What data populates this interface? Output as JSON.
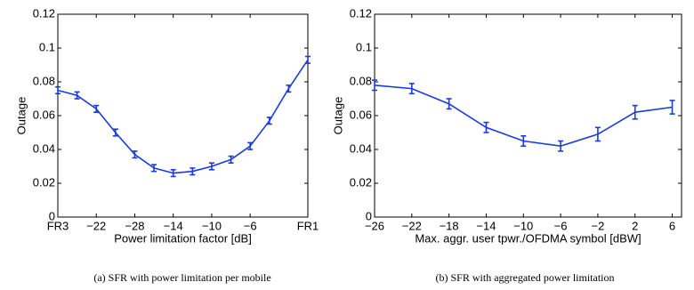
{
  "chart_data": [
    {
      "type": "line",
      "x_label": "Power limitation factor [dB]",
      "y_label": "Outage",
      "caption": "(a)  SFR with power limitation per mobile",
      "categories": [
        "FR3",
        null,
        "−22",
        null,
        "−28",
        null,
        "−14",
        null,
        "−10",
        null,
        "−6",
        null,
        null,
        "FR1"
      ],
      "values": [
        0.075,
        0.072,
        0.064,
        0.05,
        0.037,
        0.029,
        0.026,
        0.027,
        0.03,
        0.034,
        0.042,
        0.057,
        0.076,
        0.093
      ],
      "errors": [
        0.002,
        0.002,
        0.002,
        0.002,
        0.002,
        0.002,
        0.002,
        0.002,
        0.002,
        0.002,
        0.002,
        0.002,
        0.002,
        0.002
      ],
      "color": "#1a3be0",
      "ylim": [
        0,
        0.12
      ],
      "yticks": [
        0,
        0.02,
        0.04,
        0.06,
        0.08,
        0.1,
        0.12
      ]
    },
    {
      "type": "line",
      "x_label": "Max. aggr. user tpwr./OFDMA symbol [dBW]",
      "y_label": "Outage",
      "caption": "(b)  SFR with aggregated power limitation",
      "x": [
        -26,
        -22,
        -18,
        -14,
        -10,
        -6,
        -2,
        2,
        6
      ],
      "values": [
        0.078,
        0.076,
        0.067,
        0.053,
        0.045,
        0.042,
        0.049,
        0.062,
        0.065
      ],
      "errors": [
        0.003,
        0.003,
        0.003,
        0.003,
        0.003,
        0.003,
        0.004,
        0.004,
        0.004
      ],
      "color": "#1a3be0",
      "xlim": [
        -26,
        7
      ],
      "xticks": [
        {
          "value": -26,
          "label": "−26"
        },
        {
          "value": -22,
          "label": "−22"
        },
        {
          "value": -18,
          "label": "−18"
        },
        {
          "value": -14,
          "label": "−14"
        },
        {
          "value": -10,
          "label": "−10"
        },
        {
          "value": -6,
          "label": "−6"
        },
        {
          "value": -2,
          "label": "−2"
        },
        2,
        6
      ],
      "ylim": [
        0,
        0.12
      ],
      "yticks": [
        0,
        0.02,
        0.04,
        0.06,
        0.08,
        0.1,
        0.12
      ]
    }
  ]
}
